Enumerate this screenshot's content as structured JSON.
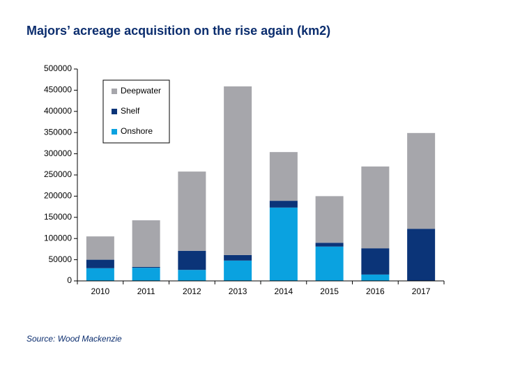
{
  "chart_data": {
    "type": "stacked-bar",
    "title": "Majors’ acreage acquisition  on the rise again (km2)",
    "source": "Source: Wood Mackenzie",
    "categories": [
      "2010",
      "2011",
      "2012",
      "2013",
      "2014",
      "2015",
      "2016",
      "2017"
    ],
    "series": [
      {
        "name": "Onshore",
        "color": "#0aa2e0",
        "values": [
          30000,
          31000,
          26000,
          48000,
          173000,
          81000,
          15000,
          0
        ]
      },
      {
        "name": "Shelf",
        "color": "#0b3478",
        "values": [
          20000,
          2000,
          45000,
          13000,
          16000,
          9000,
          62000,
          123000
        ]
      },
      {
        "name": "Deepwater",
        "color": "#a6a6ab",
        "values": [
          55000,
          110000,
          187000,
          398000,
          115000,
          110000,
          193000,
          226000
        ]
      }
    ],
    "ylim": [
      0,
      500000
    ],
    "yticks": [
      0,
      50000,
      100000,
      150000,
      200000,
      250000,
      300000,
      350000,
      400000,
      450000,
      500000
    ]
  }
}
